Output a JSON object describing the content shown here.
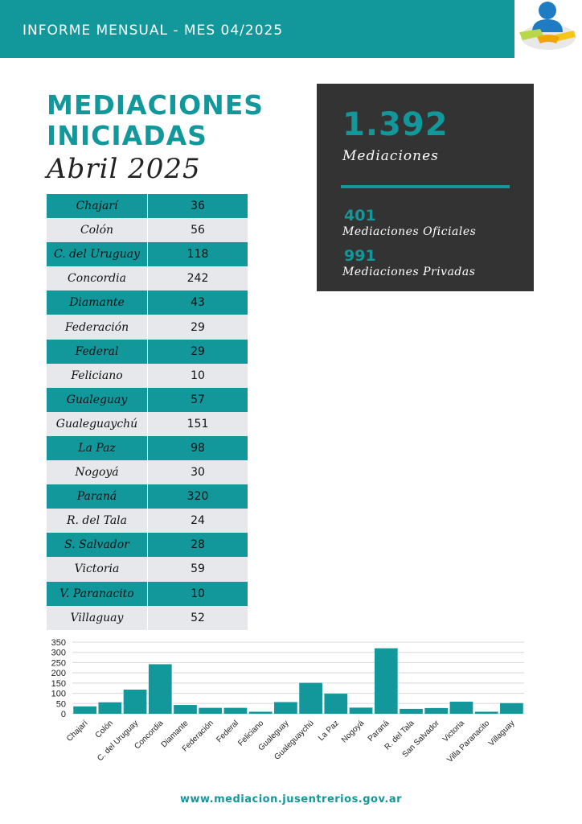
{
  "header": {
    "banner_text": "INFORME MENSUAL - MES 04/2025"
  },
  "logo": {
    "icon": "mediation-people-hands-icon"
  },
  "title": {
    "line1": "MEDIACIONES",
    "line2": "INICIADAS",
    "period": "Abril 2025"
  },
  "table": {
    "rows": [
      {
        "name": "Chajarí",
        "value": "36"
      },
      {
        "name": "Colón",
        "value": "56"
      },
      {
        "name": "C. del Uruguay",
        "value": "118"
      },
      {
        "name": "Concordia",
        "value": "242"
      },
      {
        "name": "Diamante",
        "value": "43"
      },
      {
        "name": "Federación",
        "value": "29"
      },
      {
        "name": "Federal",
        "value": "29"
      },
      {
        "name": "Feliciano",
        "value": "10"
      },
      {
        "name": "Gualeguay",
        "value": "57"
      },
      {
        "name": "Gualeguaychú",
        "value": "151"
      },
      {
        "name": "La Paz",
        "value": "98"
      },
      {
        "name": "Nogoyá",
        "value": "30"
      },
      {
        "name": "Paraná",
        "value": "320"
      },
      {
        "name": "R. del Tala",
        "value": "24"
      },
      {
        "name": "S. Salvador",
        "value": "28"
      },
      {
        "name": "Victoria",
        "value": "59"
      },
      {
        "name": "V. Paranacito",
        "value": "10"
      },
      {
        "name": "Villaguay",
        "value": "52"
      }
    ]
  },
  "stats": {
    "total": "1.392",
    "total_label": "Mediaciones",
    "oficiales_value": "401",
    "oficiales_label": "Mediaciones Oficiales",
    "privadas_value": "991",
    "privadas_label": "Mediaciones Privadas"
  },
  "chart_data": {
    "type": "bar",
    "categories": [
      "Chajarí",
      "Colón",
      "C. del Uruguay",
      "Concordia",
      "Diamante",
      "Federación",
      "Federal",
      "Feliciano",
      "Gualeguay",
      "Gualeguaychú",
      "La Paz",
      "Nogoyá",
      "Paraná",
      "R. del Tala",
      "San Salvador",
      "Victoria",
      "Villa Paranacito",
      "Villaguay"
    ],
    "values": [
      36,
      56,
      118,
      242,
      43,
      29,
      29,
      10,
      57,
      151,
      98,
      30,
      320,
      24,
      28,
      59,
      10,
      52
    ],
    "ylim": [
      0,
      350
    ],
    "yticks": [
      0,
      50,
      100,
      150,
      200,
      250,
      300,
      350
    ],
    "grid": true,
    "bar_color": "#12979b"
  },
  "footer": {
    "url": "www.mediacion.jusentrerios.gov.ar"
  },
  "colors": {
    "accent": "#12979b",
    "dark_panel": "#333333",
    "row_alt": "#e6e8ec"
  }
}
